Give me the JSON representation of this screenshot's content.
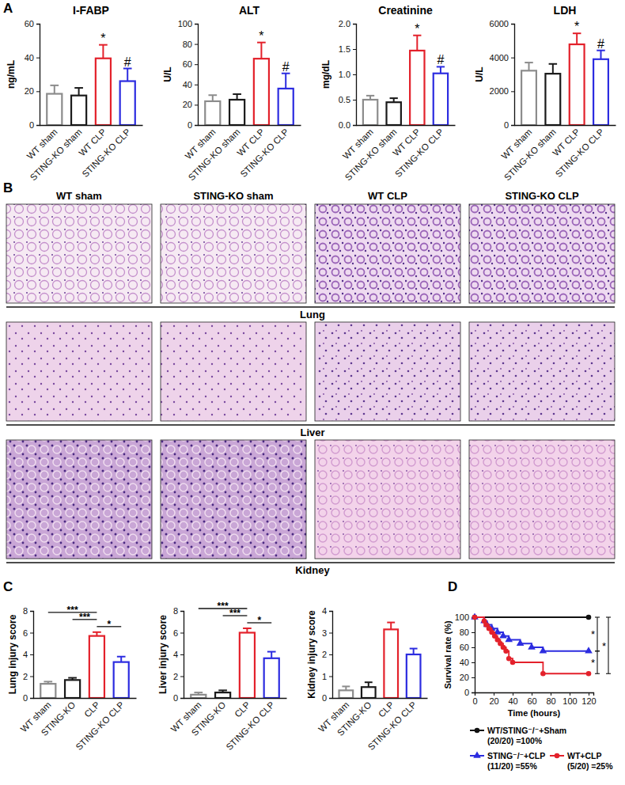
{
  "chart_data": [
    {
      "type": "bar",
      "title": "I-FABP",
      "y_label": "ng/mL",
      "categories": [
        "WT sham",
        "STING-KO sham",
        "WT CLP",
        "STING-KO CLP"
      ],
      "values": [
        18.5,
        17.5,
        39.5,
        26
      ],
      "errors": [
        5,
        4.5,
        8,
        7.5
      ],
      "colors": [
        "#8c8c8c",
        "#1a1a1a",
        "#e3212b",
        "#2c2ce0"
      ],
      "ylim": [
        0,
        60
      ],
      "yticks": [
        0,
        20,
        40,
        60
      ],
      "significance": [
        null,
        null,
        "*",
        "#"
      ]
    },
    {
      "type": "bar",
      "title": "ALT",
      "y_label": "U/L",
      "categories": [
        "WT sham",
        "STING-KO sham",
        "WT CLP",
        "STING-KO CLP"
      ],
      "values": [
        23.5,
        25,
        65.5,
        36
      ],
      "errors": [
        6,
        5.5,
        16,
        15
      ],
      "colors": [
        "#8c8c8c",
        "#1a1a1a",
        "#e3212b",
        "#2c2ce0"
      ],
      "ylim": [
        0,
        100
      ],
      "yticks": [
        0,
        20,
        40,
        60,
        80,
        100
      ],
      "significance": [
        null,
        null,
        "*",
        "#"
      ]
    },
    {
      "type": "bar",
      "title": "Creatinine",
      "y_label": "mg/dL",
      "categories": [
        "WT sham",
        "STING-KO sham",
        "WT CLP",
        "STING-KO CLP"
      ],
      "values": [
        0.5,
        0.45,
        1.47,
        1.02
      ],
      "errors": [
        0.08,
        0.08,
        0.3,
        0.13
      ],
      "colors": [
        "#8c8c8c",
        "#1a1a1a",
        "#e3212b",
        "#2c2ce0"
      ],
      "ylim": [
        0,
        2
      ],
      "yticks": [
        {
          "value": 0,
          "label": "0.0"
        },
        0.5,
        {
          "value": 1,
          "label": "1.0"
        },
        1.5,
        {
          "value": 2,
          "label": "2.0"
        }
      ],
      "significance": [
        null,
        null,
        "*",
        "#"
      ]
    },
    {
      "type": "bar",
      "title": "LDH",
      "y_label": "U/L",
      "categories": [
        "WT sham",
        "STING-KO sham",
        "WT CLP",
        "STING-KO CLP"
      ],
      "values": [
        3220,
        3040,
        4780,
        3900
      ],
      "errors": [
        480,
        580,
        650,
        520
      ],
      "colors": [
        "#8c8c8c",
        "#1a1a1a",
        "#e3212b",
        "#2c2ce0"
      ],
      "ylim": [
        0,
        6000
      ],
      "yticks": [
        0,
        2000,
        4000,
        6000
      ],
      "significance": [
        null,
        null,
        "*",
        "#"
      ]
    },
    {
      "type": "bar",
      "y_label": "Lung injury score",
      "categories": [
        "WT sham",
        "STING-KO",
        "CLP",
        "STING-KO CLP"
      ],
      "values": [
        1.3,
        1.65,
        5.7,
        3.3
      ],
      "errors": [
        0.2,
        0.2,
        0.35,
        0.5
      ],
      "colors": [
        "#8c8c8c",
        "#1a1a1a",
        "#e3212b",
        "#2c2ce0"
      ],
      "ylim": [
        0,
        8
      ],
      "yticks": [
        0,
        2,
        4,
        6,
        8
      ],
      "comparisons": [
        {
          "between": [
            "WT sham",
            "CLP"
          ],
          "label": "***"
        },
        {
          "between": [
            "STING-KO",
            "CLP"
          ],
          "label": "***"
        },
        {
          "between": [
            "CLP",
            "STING-KO CLP"
          ],
          "label": "*"
        }
      ]
    },
    {
      "type": "bar",
      "y_label": "Liver injury score",
      "categories": [
        "WT sham",
        "STING-KO",
        "CLP",
        "STING-KO CLP"
      ],
      "values": [
        0.3,
        0.5,
        6.0,
        3.65
      ],
      "errors": [
        0.2,
        0.2,
        0.4,
        0.6
      ],
      "colors": [
        "#8c8c8c",
        "#1a1a1a",
        "#e3212b",
        "#2c2ce0"
      ],
      "ylim": [
        0,
        8
      ],
      "yticks": [
        0,
        2,
        4,
        6,
        8
      ],
      "comparisons": [
        {
          "between": [
            "WT sham",
            "CLP"
          ],
          "label": "***"
        },
        {
          "between": [
            "STING-KO",
            "CLP"
          ],
          "label": "***"
        },
        {
          "between": [
            "CLP",
            "STING-KO CLP"
          ],
          "label": "*"
        }
      ]
    },
    {
      "type": "bar",
      "y_label": "Kidney injury score",
      "categories": [
        "WT sham",
        "STING-KO",
        "CLP",
        "STING-KO CLP"
      ],
      "values": [
        0.35,
        0.5,
        3.15,
        2.0
      ],
      "errors": [
        0.18,
        0.22,
        0.32,
        0.27
      ],
      "colors": [
        "#8c8c8c",
        "#1a1a1a",
        "#e3212b",
        "#2c2ce0"
      ],
      "ylim": [
        0,
        4
      ],
      "yticks": [
        0,
        1,
        2,
        3,
        4
      ]
    },
    {
      "type": "line",
      "line_style": "step",
      "x_label": "Time (hours)",
      "y_label": "Survival rate (%)",
      "xlim": [
        0,
        125
      ],
      "xticks": [
        0,
        20,
        40,
        60,
        80,
        100,
        120
      ],
      "ylim": [
        0,
        100
      ],
      "yticks": [
        0,
        20,
        40,
        60,
        80,
        100
      ],
      "series": [
        {
          "name": "WT/STING⁻/⁻+Sham\n(20/20) =100%",
          "color": "#111111",
          "marker": "circle",
          "x": [
            0,
            120
          ],
          "values": [
            100,
            100
          ]
        },
        {
          "name": "STING⁻/⁻+CLP\n(11/20) =55%",
          "color": "#2c2ce0",
          "marker": "triangle",
          "x": [
            0,
            10,
            13,
            18,
            24,
            30,
            36,
            48,
            60,
            72,
            120
          ],
          "values": [
            100,
            95,
            90,
            85,
            80,
            75,
            70,
            65,
            60,
            55,
            55
          ]
        },
        {
          "name": "WT+CLP\n(5/20) =25%",
          "color": "#e3212b",
          "marker": "circle",
          "x": [
            0,
            10,
            12,
            15,
            18,
            21,
            24,
            27,
            30,
            33,
            36,
            40,
            72,
            120
          ],
          "values": [
            100,
            95,
            90,
            85,
            80,
            75,
            70,
            65,
            60,
            55,
            45,
            40,
            25,
            25
          ]
        }
      ],
      "comparisons": [
        {
          "between": [
            "WT/STING⁻/⁻+Sham\n(20/20) =100%",
            "STING⁻/⁻+CLP\n(11/20) =55%"
          ],
          "label": "*"
        },
        {
          "between": [
            "STING⁻/⁻+CLP\n(11/20) =55%",
            "WT+CLP\n(5/20) =25%"
          ],
          "label": "*"
        },
        {
          "between": [
            "WT/STING⁻/⁻+Sham\n(20/20) =100%",
            "WT+CLP\n(5/20) =25%"
          ],
          "label": "*"
        }
      ]
    }
  ],
  "figure": {
    "panel_labels": [
      "A",
      "B",
      "C",
      "D"
    ],
    "histology": {
      "columns": [
        "WT sham",
        "STING-KO sham",
        "WT CLP",
        "STING-KO CLP"
      ],
      "rows": [
        "Lung",
        "Liver",
        "Kidney"
      ]
    }
  }
}
